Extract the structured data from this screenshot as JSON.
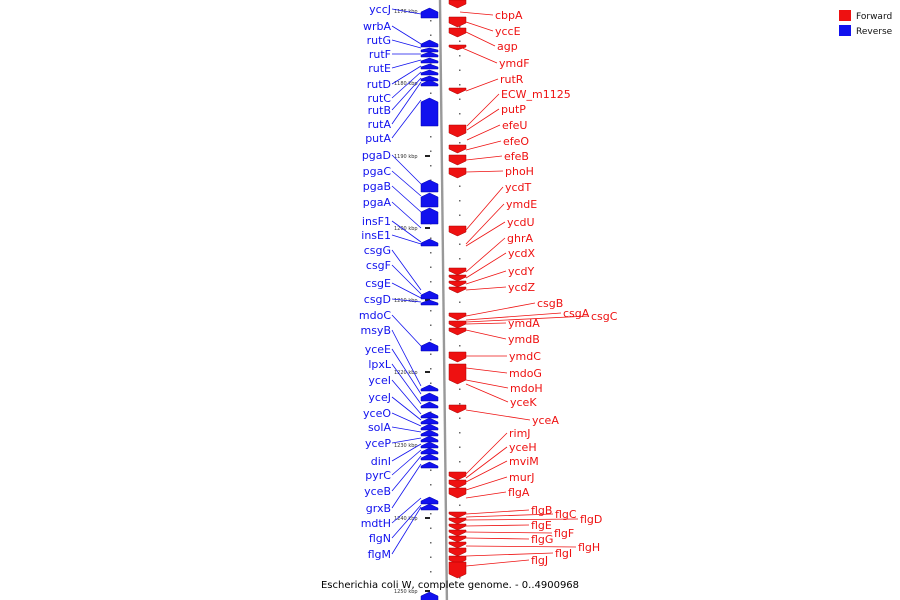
{
  "footer": "Escherichia coli W, complete genome. - 0..4900968",
  "legend": [
    {
      "label": "Forward",
      "color": "#ee1111"
    },
    {
      "label": "Reverse",
      "color": "#1111ee"
    }
  ],
  "colors": {
    "forward": "#ee1111",
    "reverse": "#1111ee",
    "backbone": "#999999"
  },
  "kbp_marks": [
    "1176 kbp",
    "1180 kbp",
    "1190 kbp",
    "1200 kbp",
    "1210 kbp",
    "1220 kbp",
    "1230 kbp",
    "1240 kbp",
    "1250 kbp"
  ],
  "reverse_labels": [
    "yccJ",
    "wrbA",
    "rutG",
    "rutF",
    "rutE",
    "rutD",
    "rutC",
    "rutB",
    "rutA",
    "putA",
    "pgaD",
    "pgaC",
    "pgaB",
    "pgaA",
    "insF1",
    "insE1",
    "csgG",
    "csgF",
    "csgE",
    "csgD",
    "mdoC",
    "msyB",
    "yceE",
    "lpxL",
    "yceI",
    "yceJ",
    "yceO",
    "solA",
    "yceP",
    "dinI",
    "pyrC",
    "yceB",
    "grxB",
    "mdtH",
    "flgN",
    "flgM"
  ],
  "forward_labels": [
    "cbpA",
    "yccE",
    "agp",
    "ymdF",
    "rutR",
    "ECW_m1125",
    "putP",
    "efeU",
    "efeO",
    "efeB",
    "phoH",
    "ycdT",
    "ymdE",
    "ycdU",
    "ghrA",
    "ycdX",
    "ycdY",
    "ycdZ",
    "csgB",
    "csgA",
    "csgC",
    "ymdA",
    "ymdB",
    "ymdC",
    "mdoG",
    "mdoH",
    "yceK",
    "yceA",
    "rimJ",
    "yceH",
    "mviM",
    "murJ",
    "flgA",
    "flgB",
    "flgC",
    "flgD",
    "flgE",
    "flgF",
    "flgG",
    "flgH",
    "flgI",
    "flgJ"
  ]
}
